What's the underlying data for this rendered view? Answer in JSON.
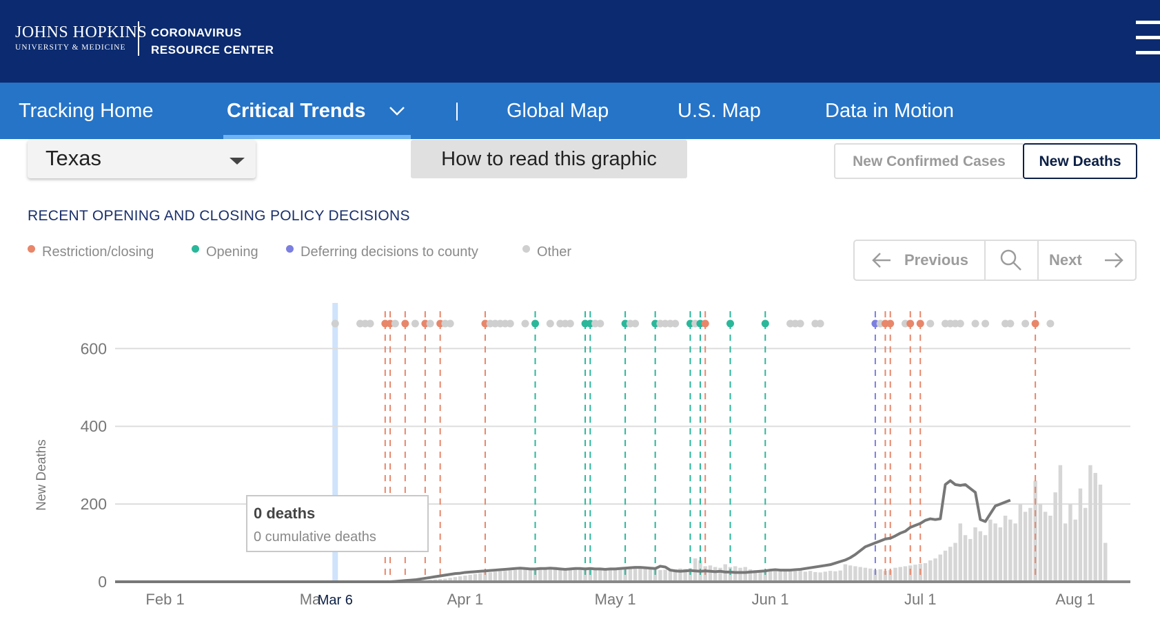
{
  "header": {
    "logo_name": "JOHNS HOPKINS",
    "logo_sub": "UNIVERSITY & MEDICINE",
    "center_line1": "CORONAVIRUS",
    "center_line2": "RESOURCE CENTER",
    "menu_icon": "hamburger-menu-icon"
  },
  "nav": {
    "items": [
      "Tracking Home",
      "Critical Trends",
      "Global Map",
      "U.S. Map",
      "Data in Motion"
    ],
    "active": "Critical Trends",
    "dropdown_icon": "chevron-down-icon"
  },
  "controls": {
    "state": "Texas",
    "how_to": "How to read this graphic",
    "toggle_cases": "New Confirmed Cases",
    "toggle_deaths": "New Deaths",
    "active_toggle": "New Deaths"
  },
  "policy": {
    "title": "RECENT OPENING AND CLOSING POLICY DECISIONS",
    "legend": [
      {
        "label": "Restriction/closing",
        "color": "#e8866a"
      },
      {
        "label": "Opening",
        "color": "#2ab79a"
      },
      {
        "label": "Deferring decisions to county",
        "color": "#7b7fe0"
      },
      {
        "label": "Other",
        "color": "#cfcfcf"
      }
    ]
  },
  "pager": {
    "previous": "Previous",
    "next": "Next",
    "prev_icon": "arrow-left-icon",
    "search_icon": "search-icon",
    "next_icon": "arrow-right-icon"
  },
  "tooltip": {
    "title": "0 deaths",
    "subtitle": "0 cumulative deaths"
  },
  "chart_data": {
    "type": "bar",
    "title": "",
    "ylabel": "New Deaths",
    "xlabel": "",
    "ylim": [
      0,
      620
    ],
    "yticks": [
      0,
      200,
      400,
      600
    ],
    "xticks": [
      {
        "label": "Feb 1",
        "day": 10
      },
      {
        "label": "Ma",
        "day": 39
      },
      {
        "label": "Apr 1",
        "day": 70
      },
      {
        "label": "May 1",
        "day": 100
      },
      {
        "label": "Jun 1",
        "day": 131
      },
      {
        "label": "Jul 1",
        "day": 161
      },
      {
        "label": "Aug 1",
        "day": 192
      }
    ],
    "highlight": {
      "label": "Mar 6",
      "day": 44
    },
    "x_range_days": [
      0,
      203
    ],
    "daily_bar_values": [
      0,
      0,
      0,
      0,
      0,
      0,
      0,
      0,
      0,
      0,
      0,
      0,
      0,
      0,
      0,
      0,
      0,
      0,
      0,
      0,
      0,
      0,
      0,
      0,
      0,
      0,
      0,
      0,
      0,
      0,
      0,
      0,
      0,
      0,
      0,
      0,
      0,
      0,
      0,
      0,
      0,
      0,
      0,
      0,
      0,
      0,
      0,
      0,
      0,
      0,
      0,
      0,
      0,
      0,
      0,
      0,
      1,
      1,
      2,
      2,
      3,
      3,
      4,
      5,
      6,
      7,
      8,
      10,
      12,
      14,
      16,
      18,
      20,
      22,
      24,
      24,
      26,
      27,
      28,
      29,
      30,
      31,
      32,
      33,
      34,
      35,
      36,
      37,
      38,
      35,
      34,
      33,
      35,
      36,
      37,
      35,
      36,
      34,
      33,
      34,
      35,
      36,
      38,
      37,
      36,
      34,
      35,
      36,
      37,
      30,
      31,
      30,
      32,
      34,
      33,
      35,
      60,
      55,
      40,
      42,
      38,
      36,
      45,
      38,
      40,
      36,
      38,
      32,
      30,
      28,
      30,
      29,
      27,
      30,
      29,
      28,
      27,
      30,
      26,
      28,
      25,
      24,
      26,
      28,
      27,
      29,
      45,
      42,
      40,
      38,
      36,
      34,
      30,
      32,
      28,
      30,
      36,
      38,
      40,
      42,
      44,
      46,
      48,
      55,
      60,
      70,
      80,
      90,
      100,
      150,
      120,
      110,
      140,
      130,
      120,
      160,
      150,
      140,
      170,
      160,
      150,
      200,
      180,
      190,
      260,
      200,
      180,
      170,
      230,
      300,
      150,
      200,
      160,
      240,
      190,
      300,
      280,
      250,
      100
    ],
    "average_line": {
      "start_day": 55,
      "values": [
        0,
        1,
        2,
        3,
        4,
        5,
        7,
        9,
        11,
        13,
        15,
        17,
        19,
        21,
        22,
        24,
        25,
        26,
        27,
        28,
        29,
        30,
        31,
        32,
        33,
        34,
        35,
        34,
        33,
        33,
        34,
        34,
        35,
        34,
        33,
        32,
        33,
        34,
        34,
        33,
        34,
        33,
        33,
        32,
        33,
        33,
        34,
        35,
        36,
        37,
        37,
        36,
        35,
        34,
        40,
        38,
        30,
        28,
        27,
        28,
        29,
        28,
        27,
        28,
        27,
        26,
        27,
        25,
        25,
        24,
        24,
        24,
        25,
        26,
        27,
        28,
        30,
        31,
        30,
        30,
        30,
        31,
        32,
        34,
        36,
        38,
        40,
        42,
        44,
        48,
        52,
        56,
        62,
        70,
        80,
        90,
        95,
        100,
        105,
        110,
        112,
        118,
        125,
        130,
        140,
        145,
        150,
        158,
        162,
        160,
        162,
        250,
        260,
        250,
        248,
        250,
        240,
        230,
        160,
        155,
        175,
        195,
        200,
        205,
        210
      ]
    },
    "policy_events": [
      {
        "day": 44,
        "type": "other"
      },
      {
        "day": 49,
        "type": "other"
      },
      {
        "day": 50,
        "type": "other"
      },
      {
        "day": 51,
        "type": "other"
      },
      {
        "day": 54,
        "type": "restriction"
      },
      {
        "day": 55,
        "type": "restriction"
      },
      {
        "day": 56,
        "type": "other"
      },
      {
        "day": 58,
        "type": "restriction"
      },
      {
        "day": 60,
        "type": "other"
      },
      {
        "day": 62,
        "type": "restriction"
      },
      {
        "day": 63,
        "type": "other"
      },
      {
        "day": 65,
        "type": "restriction"
      },
      {
        "day": 66,
        "type": "other"
      },
      {
        "day": 67,
        "type": "other"
      },
      {
        "day": 74,
        "type": "restriction"
      },
      {
        "day": 75,
        "type": "other"
      },
      {
        "day": 76,
        "type": "other"
      },
      {
        "day": 77,
        "type": "other"
      },
      {
        "day": 78,
        "type": "other"
      },
      {
        "day": 79,
        "type": "other"
      },
      {
        "day": 82,
        "type": "other"
      },
      {
        "day": 84,
        "type": "opening"
      },
      {
        "day": 87,
        "type": "other"
      },
      {
        "day": 89,
        "type": "other"
      },
      {
        "day": 90,
        "type": "other"
      },
      {
        "day": 91,
        "type": "other"
      },
      {
        "day": 94,
        "type": "opening"
      },
      {
        "day": 95,
        "type": "opening"
      },
      {
        "day": 96,
        "type": "other"
      },
      {
        "day": 97,
        "type": "other"
      },
      {
        "day": 102,
        "type": "opening"
      },
      {
        "day": 103,
        "type": "other"
      },
      {
        "day": 104,
        "type": "other"
      },
      {
        "day": 108,
        "type": "opening"
      },
      {
        "day": 109,
        "type": "other"
      },
      {
        "day": 110,
        "type": "other"
      },
      {
        "day": 111,
        "type": "other"
      },
      {
        "day": 112,
        "type": "other"
      },
      {
        "day": 115,
        "type": "opening"
      },
      {
        "day": 116,
        "type": "other"
      },
      {
        "day": 117,
        "type": "opening"
      },
      {
        "day": 118,
        "type": "restriction"
      },
      {
        "day": 123,
        "type": "opening"
      },
      {
        "day": 130,
        "type": "opening"
      },
      {
        "day": 135,
        "type": "other"
      },
      {
        "day": 136,
        "type": "other"
      },
      {
        "day": 137,
        "type": "other"
      },
      {
        "day": 140,
        "type": "other"
      },
      {
        "day": 141,
        "type": "other"
      },
      {
        "day": 152,
        "type": "deferring"
      },
      {
        "day": 153,
        "type": "other"
      },
      {
        "day": 154,
        "type": "restriction"
      },
      {
        "day": 155,
        "type": "restriction"
      },
      {
        "day": 158,
        "type": "other"
      },
      {
        "day": 159,
        "type": "restriction"
      },
      {
        "day": 161,
        "type": "restriction"
      },
      {
        "day": 163,
        "type": "other"
      },
      {
        "day": 166,
        "type": "other"
      },
      {
        "day": 167,
        "type": "other"
      },
      {
        "day": 168,
        "type": "other"
      },
      {
        "day": 169,
        "type": "other"
      },
      {
        "day": 172,
        "type": "other"
      },
      {
        "day": 174,
        "type": "other"
      },
      {
        "day": 178,
        "type": "other"
      },
      {
        "day": 179,
        "type": "other"
      },
      {
        "day": 182,
        "type": "other"
      },
      {
        "day": 184,
        "type": "restriction"
      },
      {
        "day": 187,
        "type": "other"
      }
    ],
    "dashed_lines": [
      {
        "day": 54,
        "type": "restriction"
      },
      {
        "day": 55,
        "type": "restriction"
      },
      {
        "day": 58,
        "type": "restriction"
      },
      {
        "day": 62,
        "type": "restriction"
      },
      {
        "day": 65,
        "type": "restriction"
      },
      {
        "day": 74,
        "type": "restriction"
      },
      {
        "day": 84,
        "type": "opening"
      },
      {
        "day": 94,
        "type": "opening"
      },
      {
        "day": 95,
        "type": "opening"
      },
      {
        "day": 102,
        "type": "opening"
      },
      {
        "day": 108,
        "type": "opening"
      },
      {
        "day": 115,
        "type": "opening"
      },
      {
        "day": 117,
        "type": "opening"
      },
      {
        "day": 118,
        "type": "restriction"
      },
      {
        "day": 123,
        "type": "opening"
      },
      {
        "day": 130,
        "type": "opening"
      },
      {
        "day": 152,
        "type": "deferring"
      },
      {
        "day": 154,
        "type": "restriction"
      },
      {
        "day": 155,
        "type": "restriction"
      },
      {
        "day": 159,
        "type": "restriction"
      },
      {
        "day": 161,
        "type": "restriction"
      },
      {
        "day": 184,
        "type": "restriction"
      }
    ],
    "colors": {
      "restriction": "#e8866a",
      "opening": "#2ab79a",
      "deferring": "#7b7fe0",
      "other": "#cfcfcf",
      "bars": "#d6d6d6",
      "line": "#777777",
      "grid": "#dddddd",
      "highlight": "#cfe3fb"
    }
  }
}
